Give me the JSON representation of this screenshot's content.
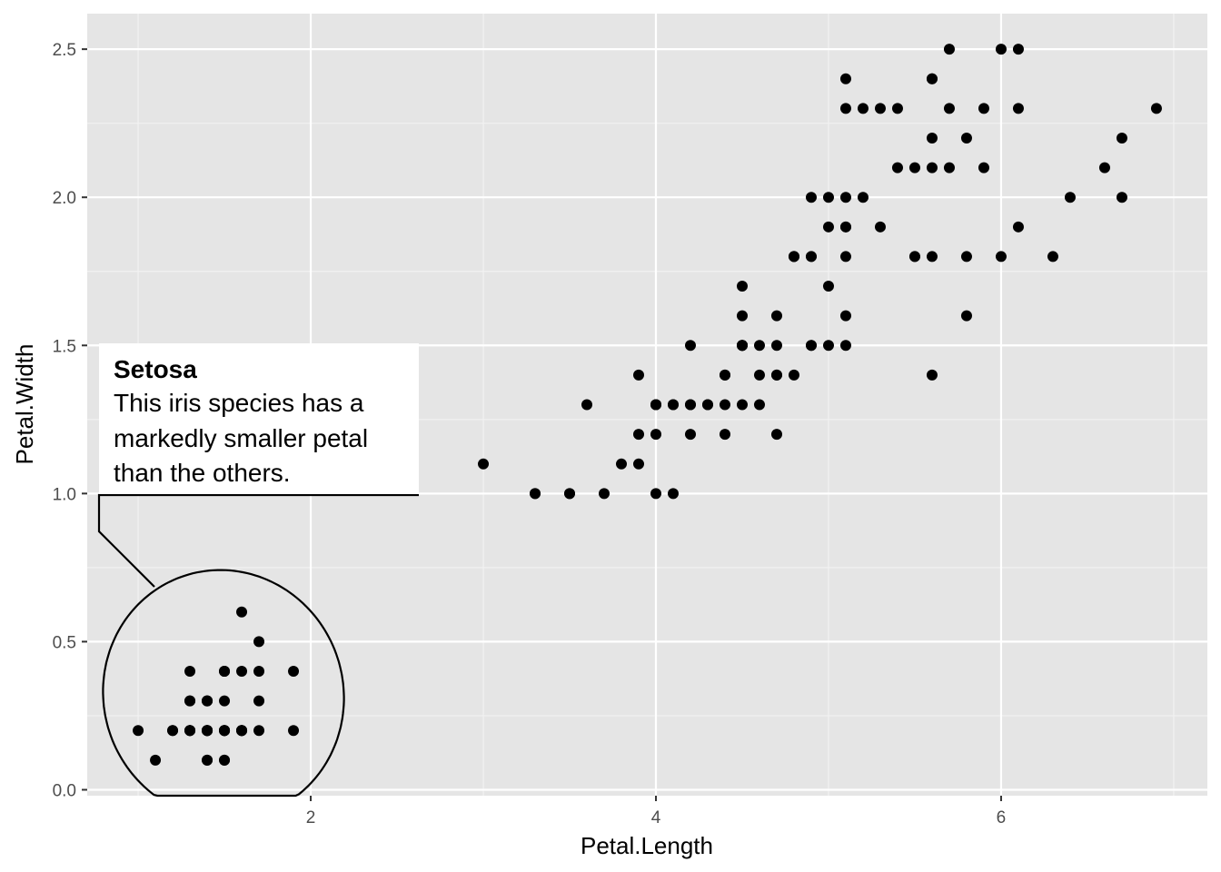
{
  "chart_data": {
    "type": "scatter",
    "title": "",
    "xlabel": "Petal.Length",
    "ylabel": "Petal.Width",
    "xlim": [
      0.705,
      7.195
    ],
    "ylim": [
      -0.02,
      2.62
    ],
    "x_ticks": [
      2,
      4,
      6
    ],
    "x_tick_labels": [
      "2",
      "4",
      "6"
    ],
    "y_ticks": [
      0,
      0.5,
      1,
      1.5,
      2,
      2.5
    ],
    "y_tick_labels": [
      "0.0",
      "0.5",
      "1.0",
      "1.5",
      "2.0",
      "2.5"
    ],
    "grid": true,
    "legend": "none",
    "colors": {
      "panel": "#e5e5e5",
      "grid": "#ffffff",
      "point": "#000000",
      "text": "#4d4d4d"
    },
    "points": [
      [
        1.4,
        0.2
      ],
      [
        1.4,
        0.2
      ],
      [
        1.3,
        0.2
      ],
      [
        1.5,
        0.2
      ],
      [
        1.4,
        0.2
      ],
      [
        1.7,
        0.4
      ],
      [
        1.4,
        0.3
      ],
      [
        1.5,
        0.2
      ],
      [
        1.4,
        0.2
      ],
      [
        1.5,
        0.1
      ],
      [
        1.5,
        0.2
      ],
      [
        1.6,
        0.2
      ],
      [
        1.4,
        0.1
      ],
      [
        1.1,
        0.1
      ],
      [
        1.2,
        0.2
      ],
      [
        1.5,
        0.4
      ],
      [
        1.3,
        0.4
      ],
      [
        1.4,
        0.3
      ],
      [
        1.7,
        0.3
      ],
      [
        1.5,
        0.3
      ],
      [
        1.7,
        0.2
      ],
      [
        1.5,
        0.4
      ],
      [
        1.0,
        0.2
      ],
      [
        1.7,
        0.5
      ],
      [
        1.9,
        0.2
      ],
      [
        1.6,
        0.2
      ],
      [
        1.6,
        0.4
      ],
      [
        1.5,
        0.2
      ],
      [
        1.4,
        0.2
      ],
      [
        1.6,
        0.2
      ],
      [
        1.6,
        0.2
      ],
      [
        1.5,
        0.4
      ],
      [
        1.5,
        0.1
      ],
      [
        1.4,
        0.2
      ],
      [
        1.5,
        0.2
      ],
      [
        1.2,
        0.2
      ],
      [
        1.3,
        0.2
      ],
      [
        1.4,
        0.1
      ],
      [
        1.3,
        0.2
      ],
      [
        1.5,
        0.2
      ],
      [
        1.3,
        0.3
      ],
      [
        1.3,
        0.3
      ],
      [
        1.3,
        0.2
      ],
      [
        1.6,
        0.6
      ],
      [
        1.9,
        0.4
      ],
      [
        1.4,
        0.3
      ],
      [
        1.6,
        0.2
      ],
      [
        1.4,
        0.2
      ],
      [
        1.5,
        0.2
      ],
      [
        1.4,
        0.2
      ],
      [
        4.7,
        1.4
      ],
      [
        4.5,
        1.5
      ],
      [
        4.9,
        1.5
      ],
      [
        4.0,
        1.3
      ],
      [
        4.6,
        1.5
      ],
      [
        4.5,
        1.3
      ],
      [
        4.7,
        1.6
      ],
      [
        3.3,
        1.0
      ],
      [
        4.6,
        1.3
      ],
      [
        3.9,
        1.4
      ],
      [
        3.5,
        1.0
      ],
      [
        4.2,
        1.5
      ],
      [
        4.0,
        1.0
      ],
      [
        4.7,
        1.4
      ],
      [
        3.6,
        1.3
      ],
      [
        4.4,
        1.4
      ],
      [
        4.5,
        1.5
      ],
      [
        4.1,
        1.0
      ],
      [
        4.5,
        1.5
      ],
      [
        3.9,
        1.1
      ],
      [
        4.8,
        1.8
      ],
      [
        4.0,
        1.3
      ],
      [
        4.9,
        1.5
      ],
      [
        4.7,
        1.2
      ],
      [
        4.3,
        1.3
      ],
      [
        4.4,
        1.4
      ],
      [
        4.8,
        1.4
      ],
      [
        5.0,
        1.7
      ],
      [
        4.5,
        1.5
      ],
      [
        3.5,
        1.0
      ],
      [
        3.8,
        1.1
      ],
      [
        3.7,
        1.0
      ],
      [
        3.9,
        1.2
      ],
      [
        5.1,
        1.6
      ],
      [
        4.5,
        1.5
      ],
      [
        4.5,
        1.6
      ],
      [
        4.7,
        1.5
      ],
      [
        4.4,
        1.3
      ],
      [
        4.1,
        1.3
      ],
      [
        4.0,
        1.3
      ],
      [
        4.4,
        1.2
      ],
      [
        4.6,
        1.4
      ],
      [
        4.0,
        1.2
      ],
      [
        3.3,
        1.0
      ],
      [
        4.2,
        1.3
      ],
      [
        4.2,
        1.2
      ],
      [
        4.2,
        1.3
      ],
      [
        4.3,
        1.3
      ],
      [
        3.0,
        1.1
      ],
      [
        4.1,
        1.3
      ],
      [
        6.0,
        2.5
      ],
      [
        5.1,
        1.9
      ],
      [
        5.9,
        2.1
      ],
      [
        5.6,
        1.8
      ],
      [
        5.8,
        2.2
      ],
      [
        6.6,
        2.1
      ],
      [
        4.5,
        1.7
      ],
      [
        6.3,
        1.8
      ],
      [
        5.8,
        1.8
      ],
      [
        6.1,
        2.5
      ],
      [
        5.1,
        2.0
      ],
      [
        5.3,
        1.9
      ],
      [
        5.5,
        2.1
      ],
      [
        5.0,
        2.0
      ],
      [
        5.1,
        2.4
      ],
      [
        5.3,
        2.3
      ],
      [
        5.5,
        1.8
      ],
      [
        6.7,
        2.2
      ],
      [
        6.9,
        2.3
      ],
      [
        5.0,
        1.5
      ],
      [
        5.7,
        2.3
      ],
      [
        4.9,
        2.0
      ],
      [
        6.7,
        2.0
      ],
      [
        4.9,
        1.8
      ],
      [
        5.7,
        2.1
      ],
      [
        6.0,
        1.8
      ],
      [
        4.8,
        1.8
      ],
      [
        4.9,
        1.8
      ],
      [
        5.6,
        2.1
      ],
      [
        5.8,
        1.6
      ],
      [
        6.1,
        1.9
      ],
      [
        6.4,
        2.0
      ],
      [
        5.6,
        2.2
      ],
      [
        5.1,
        1.5
      ],
      [
        5.6,
        1.4
      ],
      [
        6.1,
        2.3
      ],
      [
        5.6,
        2.4
      ],
      [
        5.5,
        1.8
      ],
      [
        4.8,
        1.8
      ],
      [
        5.4,
        2.1
      ],
      [
        5.6,
        2.4
      ],
      [
        5.1,
        2.3
      ],
      [
        5.1,
        1.9
      ],
      [
        5.9,
        2.3
      ],
      [
        5.7,
        2.5
      ],
      [
        5.2,
        2.3
      ],
      [
        5.0,
        1.9
      ],
      [
        5.2,
        2.0
      ],
      [
        5.4,
        2.3
      ],
      [
        5.1,
        1.8
      ]
    ],
    "annotation": {
      "title": "Setosa",
      "lines": [
        "This iris species has a",
        "markedly smaller petal",
        "than the others."
      ],
      "target": "setosa-cluster"
    }
  }
}
